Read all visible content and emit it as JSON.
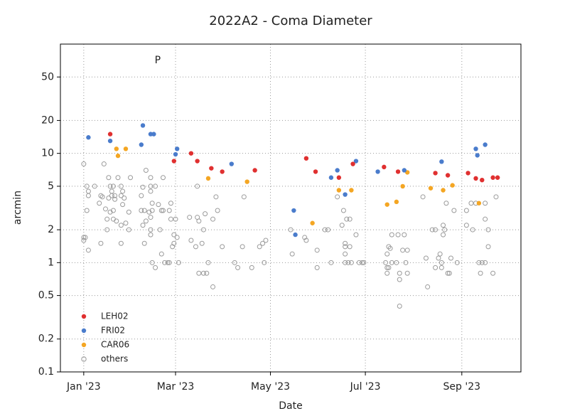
{
  "chart_data": {
    "type": "scatter",
    "title": "2022A2 - Coma Diameter",
    "xlabel": "Date",
    "ylabel": "arcmin",
    "xlim": [
      -15,
      281
    ],
    "xticks": [
      {
        "value": 0,
        "label": "Jan '23"
      },
      {
        "value": 59,
        "label": "Mar '23"
      },
      {
        "value": 120,
        "label": "May '23"
      },
      {
        "value": 181,
        "label": "Jul '23"
      },
      {
        "value": 243,
        "label": "Sep '23"
      }
    ],
    "ylim": [
      0.1,
      100
    ],
    "yscale": "log",
    "yticks": [
      0.1,
      0.2,
      0.5,
      1,
      2,
      5,
      10,
      20,
      50
    ],
    "grid": true,
    "legend_loc": "lower left",
    "annotations": [
      {
        "text": "P",
        "x": 47.5
      }
    ],
    "series": [
      {
        "name": "LEH02",
        "color": "#e03030",
        "marker": "filled",
        "x": [
          17,
          58,
          69,
          73,
          82,
          89,
          110,
          143,
          149,
          164,
          173,
          193,
          202,
          226,
          234,
          247,
          252,
          256,
          263,
          266
        ],
        "values": [
          15,
          8.5,
          10,
          8.5,
          7.3,
          6.8,
          7,
          9,
          6.8,
          6,
          8,
          7.5,
          6.8,
          6.6,
          6.3,
          6.6,
          5.9,
          5.7,
          6,
          6
        ]
      },
      {
        "name": "FRI02",
        "color": "#4a7ccc",
        "marker": "filled",
        "x": [
          3,
          17,
          38,
          37,
          43,
          45,
          59,
          60,
          95,
          135,
          136,
          159,
          163,
          168,
          175,
          189,
          206,
          230,
          252,
          253,
          258
        ],
        "values": [
          14,
          13,
          18,
          12,
          15,
          15,
          9.8,
          11,
          8,
          3,
          1.8,
          6,
          7,
          4.2,
          8.5,
          6.8,
          7,
          8.4,
          11,
          9.6,
          12
        ]
      },
      {
        "name": "CAR06",
        "color": "#f4a623",
        "marker": "filled",
        "x": [
          21,
          22,
          27,
          80,
          105,
          147,
          164,
          172,
          195,
          201,
          205,
          208,
          223,
          231,
          237,
          254
        ],
        "values": [
          11,
          9.5,
          11,
          5.9,
          5.5,
          2.3,
          4.6,
          4.6,
          3.4,
          3.6,
          5,
          6.7,
          4.8,
          4.6,
          5.1,
          3.5
        ]
      },
      {
        "name": "others",
        "color": "#9a9a9a",
        "marker": "hollow",
        "x": [
          0,
          0,
          1,
          0,
          3,
          2,
          3,
          3,
          2,
          7,
          11,
          12,
          10,
          13,
          16,
          14,
          15,
          11,
          17,
          19,
          18,
          20,
          18,
          16,
          20,
          19,
          17,
          15,
          19,
          21,
          22,
          24,
          24,
          25,
          26,
          25,
          24,
          27,
          29,
          29,
          30,
          24,
          37,
          38,
          40,
          39,
          37,
          40,
          38,
          39,
          43,
          43,
          46,
          43,
          44,
          44,
          42,
          43,
          43,
          43,
          44,
          46,
          48,
          50,
          51,
          49,
          50,
          51,
          52,
          54,
          56,
          55,
          57,
          56,
          55,
          58,
          59,
          60,
          58,
          61,
          68,
          69,
          73,
          73,
          74,
          77,
          76,
          72,
          78,
          74,
          77,
          79,
          80,
          83,
          83,
          85,
          86,
          89,
          97,
          99,
          102,
          103,
          108,
          113,
          115,
          116,
          117,
          133,
          134,
          142,
          143,
          150,
          150,
          155,
          157,
          159,
          163,
          166,
          167,
          168,
          168,
          168,
          168,
          169,
          171,
          170,
          172,
          171,
          175,
          177,
          179,
          180,
          194,
          195,
          196,
          197,
          198,
          195,
          195,
          196,
          198,
          202,
          201,
          203,
          203,
          203,
          205,
          206,
          207,
          208,
          208,
          218,
          221,
          220,
          224,
          226,
          226,
          228,
          229,
          230,
          230,
          231,
          231,
          232,
          233,
          235,
          236,
          238,
          234,
          240,
          246,
          246,
          249,
          250,
          252,
          254,
          255,
          256,
          258,
          258,
          258,
          260,
          260,
          263,
          265
        ],
        "values": [
          8,
          1.7,
          1.7,
          1.6,
          1.3,
          5,
          4.5,
          4.1,
          3,
          5,
          4.1,
          4,
          3.5,
          8,
          6,
          3.1,
          2,
          1.5,
          5,
          5,
          4.5,
          4.1,
          4.1,
          3.9,
          3.8,
          3,
          2.9,
          2.5,
          2.5,
          2.4,
          6,
          5,
          4.1,
          4.5,
          3.9,
          3.4,
          2.2,
          2.3,
          2.9,
          2,
          6,
          1.5,
          4.1,
          4.9,
          7,
          3,
          3,
          2.4,
          2.2,
          1.5,
          6,
          5,
          5,
          4.5,
          3.5,
          3,
          2.9,
          2.6,
          1.8,
          2,
          1,
          0.9,
          3.4,
          3,
          3,
          2,
          1.2,
          6,
          1,
          1,
          3.5,
          3,
          1.4,
          2.5,
          1,
          1.5,
          2.5,
          1.7,
          1.8,
          1,
          2.6,
          1.6,
          5,
          2.6,
          2.4,
          2,
          1.5,
          1.4,
          2.8,
          0.8,
          0.8,
          0.8,
          1,
          0.6,
          2.5,
          4,
          3,
          1.4,
          1,
          0.9,
          1.4,
          4,
          0.9,
          1.4,
          1.5,
          1,
          1.6,
          2,
          1.2,
          1.7,
          1.6,
          0.9,
          1.3,
          2,
          2,
          1,
          4,
          2.2,
          3,
          1.5,
          1.2,
          1,
          1.4,
          2.5,
          2.5,
          1,
          1,
          1.4,
          1.8,
          1,
          1,
          1,
          1,
          1.2,
          1.4,
          1.35,
          1.8,
          0.9,
          0.8,
          0.9,
          1,
          1.8,
          1,
          0.8,
          0.7,
          0.4,
          1.3,
          1.8,
          1,
          1.3,
          0.8,
          4,
          0.6,
          1.1,
          2,
          2,
          0.9,
          1.1,
          1.2,
          0.9,
          1,
          2.2,
          1.8,
          2,
          3.5,
          0.8,
          1.1,
          3,
          0.8,
          1,
          3,
          2.2,
          3.5,
          2,
          3.5,
          1,
          0.8,
          1,
          1,
          2.5,
          3.5,
          2,
          1.4,
          0.8,
          4
        ]
      }
    ]
  }
}
